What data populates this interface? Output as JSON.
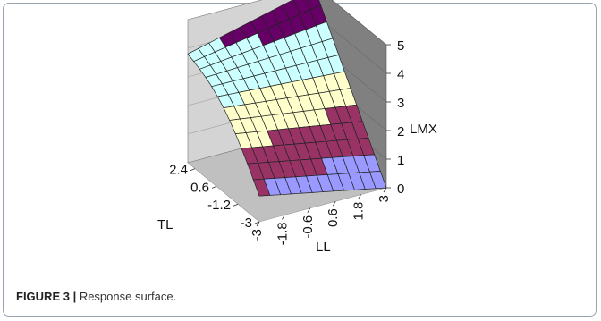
{
  "figure": {
    "label": "FIGURE 3 |",
    "caption": " Response surface."
  },
  "chart_data": {
    "type": "surface3d",
    "title": "",
    "xlabel": "LL",
    "ylabel": "TL",
    "zlabel": "LMX",
    "x_ticks": [
      "-3",
      "-1.8",
      "-0.6",
      "0.6",
      "1.8",
      "3"
    ],
    "y_ticks": [
      "-3",
      "-1.2",
      "0.6",
      "2.4"
    ],
    "z_ticks": [
      "0",
      "1",
      "2",
      "3",
      "4",
      "5"
    ],
    "x_range": [
      -3,
      3
    ],
    "y_range": [
      -3,
      3
    ],
    "z_range": [
      0,
      5
    ],
    "bands": [
      {
        "range": "0-1",
        "color": "#9999ff"
      },
      {
        "range": "1-2",
        "color": "#993366"
      },
      {
        "range": "2-3",
        "color": "#ffffcc"
      },
      {
        "range": "3-4",
        "color": "#ccffff"
      },
      {
        "range": "4-5",
        "color": "#660066"
      }
    ],
    "corner_values": {
      "LL_minus3_TL_minus3": 0.9,
      "LL_plus3_TL_minus3": 0.0,
      "LL_minus3_TL_plus3": 3.8,
      "LL_plus3_TL_plus3": 4.9
    },
    "colors": {
      "back_wall": "#d4d4d4",
      "side_wall": "#808080",
      "floor": "#c0c0c0",
      "mesh_line": "#222222"
    }
  }
}
